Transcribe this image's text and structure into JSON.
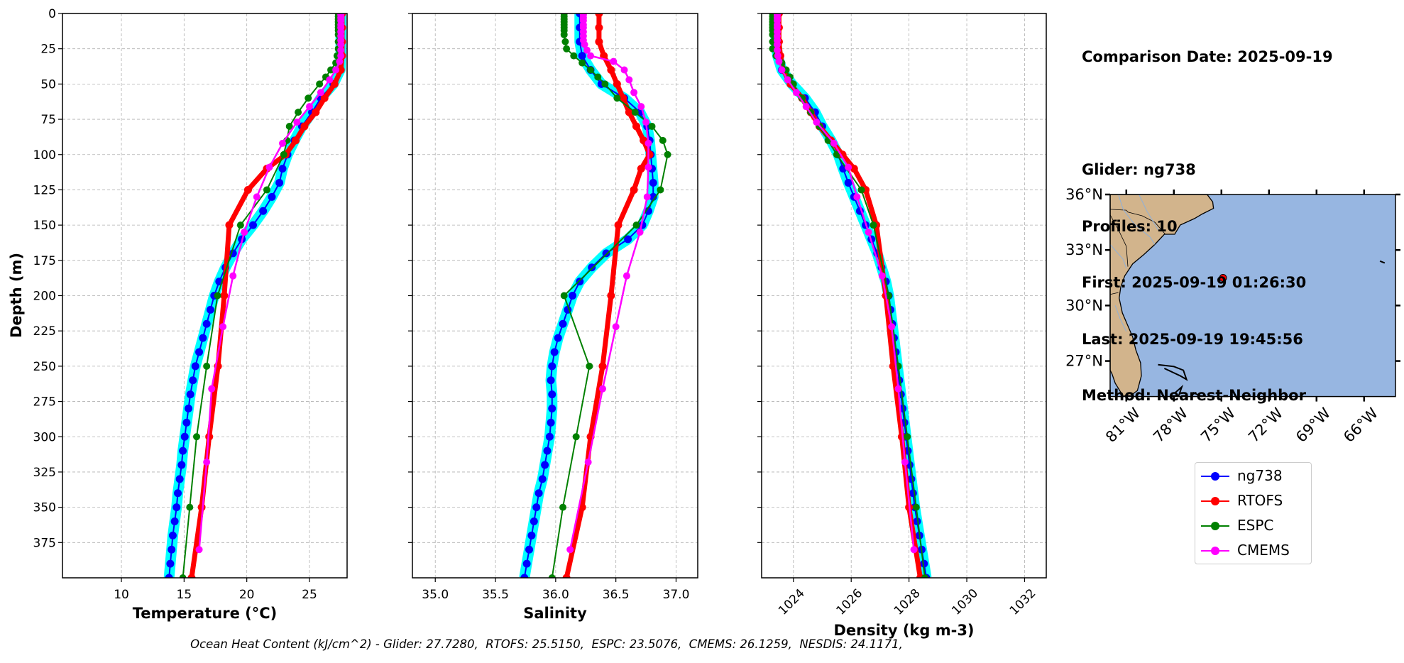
{
  "info": {
    "comparison_date": "Comparison Date: 2025-09-19",
    "glider": "Glider: ng738",
    "profiles": "Profiles: 10",
    "first": "First: 2025-09-19 01:26:30",
    "last": "Last: 2025-09-19 19:45:56",
    "method": "Method: Nearest-Neighbor"
  },
  "footer": "Ocean Heat Content (kJ/cm^2) - Glider: 27.7280,  RTOFS: 25.5150,  ESPC: 23.5076,  CMEMS: 26.1259,  NESDIS: 24.1171,",
  "colors": {
    "glider": "#0000ff",
    "glider_range": "#00ffff",
    "rtofs": "#ff0000",
    "espc": "#008000",
    "cmems": "#ff00ff",
    "land": "#d2b48c",
    "ocean": "#97b6e1",
    "grid": "#b0b0b0"
  },
  "legend": [
    "ng738",
    "RTOFS",
    "ESPC",
    "CMEMS"
  ],
  "chart_data": [
    {
      "type": "line",
      "xlabel": "Temperature (°C)",
      "ylabel": "Depth (m)",
      "xlim": [
        5.3,
        28.0
      ],
      "ylim": [
        400,
        0
      ],
      "grid": true,
      "xticks": [
        10,
        15,
        20,
        25
      ],
      "xtick_labels": [
        "10",
        "15",
        "20",
        "25"
      ],
      "yticks": [
        0,
        25,
        50,
        75,
        100,
        125,
        150,
        175,
        200,
        225,
        250,
        275,
        300,
        325,
        350,
        375
      ],
      "ytick_labels": [
        "0",
        "25",
        "50",
        "75",
        "100",
        "125",
        "150",
        "175",
        "200",
        "225",
        "250",
        "275",
        "300",
        "325",
        "350",
        "375"
      ],
      "series": [
        {
          "name": "ng738",
          "depth": [
            0,
            10,
            20,
            30,
            40,
            50,
            60,
            70,
            80,
            90,
            100,
            110,
            120,
            130,
            140,
            150,
            160,
            170,
            180,
            190,
            200,
            210,
            220,
            230,
            240,
            250,
            260,
            270,
            280,
            290,
            300,
            310,
            320,
            330,
            340,
            350,
            360,
            370,
            380,
            390,
            400
          ],
          "values": [
            27.5,
            27.5,
            27.5,
            27.5,
            27.45,
            26.9,
            25.9,
            25.2,
            24.4,
            23.8,
            23.25,
            22.85,
            22.6,
            22.0,
            21.3,
            20.5,
            19.6,
            18.9,
            18.3,
            17.8,
            17.4,
            17.1,
            16.8,
            16.5,
            16.2,
            15.9,
            15.7,
            15.5,
            15.35,
            15.2,
            15.05,
            14.9,
            14.8,
            14.65,
            14.5,
            14.4,
            14.25,
            14.1,
            14.0,
            13.9,
            13.8
          ]
        },
        {
          "name": "RTOFS",
          "depth": [
            0,
            10,
            20,
            30,
            40,
            50,
            60,
            70,
            80,
            90,
            100,
            110,
            125,
            150,
            200,
            250,
            300,
            350,
            400
          ],
          "values": [
            27.6,
            27.6,
            27.6,
            27.6,
            27.5,
            27.0,
            26.2,
            25.5,
            24.6,
            23.9,
            23.1,
            21.6,
            20.1,
            18.6,
            18.2,
            17.7,
            17.0,
            16.4,
            15.6
          ]
        },
        {
          "name": "ESPC",
          "depth": [
            0,
            2,
            4,
            6,
            8,
            10,
            12,
            15,
            20,
            25,
            30,
            35,
            40,
            45,
            50,
            60,
            70,
            80,
            90,
            100,
            125,
            150,
            200,
            250,
            300,
            350,
            400
          ],
          "values": [
            27.3,
            27.3,
            27.3,
            27.3,
            27.3,
            27.3,
            27.3,
            27.3,
            27.3,
            27.3,
            27.2,
            27.1,
            26.7,
            26.3,
            25.8,
            24.9,
            24.1,
            23.4,
            23.2,
            22.95,
            21.6,
            19.5,
            17.67,
            16.8,
            16.0,
            15.45,
            14.9
          ]
        },
        {
          "name": "CMEMS",
          "depth": [
            0,
            1,
            3,
            5,
            8,
            10,
            13,
            16,
            19,
            22,
            26,
            30,
            34,
            40,
            47,
            56,
            66,
            77,
            92,
            109,
            130,
            155,
            186,
            222,
            266,
            318,
            380
          ],
          "values": [
            27.5,
            27.5,
            27.5,
            27.5,
            27.5,
            27.5,
            27.5,
            27.5,
            27.5,
            27.5,
            27.5,
            27.5,
            27.4,
            27.1,
            26.6,
            25.9,
            25.0,
            24.0,
            22.85,
            21.8,
            20.8,
            19.8,
            18.9,
            18.1,
            17.2,
            16.8,
            16.2
          ]
        }
      ]
    },
    {
      "type": "line",
      "xlabel": "Salinity",
      "xlim": [
        34.81,
        37.18
      ],
      "ylim": [
        400,
        0
      ],
      "grid": true,
      "xticks": [
        35.0,
        35.5,
        36.0,
        36.5,
        37.0
      ],
      "xtick_labels": [
        "35.0",
        "35.5",
        "36.0",
        "36.5",
        "37.0"
      ],
      "yticks": [
        0,
        25,
        50,
        75,
        100,
        125,
        150,
        175,
        200,
        225,
        250,
        275,
        300,
        325,
        350,
        375
      ],
      "series": [
        {
          "name": "ng738",
          "depth": [
            0,
            10,
            20,
            30,
            40,
            50,
            60,
            70,
            80,
            90,
            100,
            110,
            120,
            130,
            140,
            150,
            160,
            170,
            180,
            190,
            200,
            210,
            220,
            230,
            240,
            250,
            260,
            270,
            280,
            290,
            300,
            310,
            320,
            330,
            340,
            350,
            360,
            370,
            380,
            390,
            400
          ],
          "values": [
            36.2,
            36.2,
            36.2,
            36.22,
            36.29,
            36.38,
            36.57,
            36.7,
            36.76,
            36.78,
            36.79,
            36.8,
            36.81,
            36.81,
            36.77,
            36.72,
            36.6,
            36.42,
            36.3,
            36.2,
            36.14,
            36.1,
            36.06,
            36.02,
            35.99,
            35.97,
            35.96,
            35.97,
            35.97,
            35.96,
            35.95,
            35.93,
            35.91,
            35.89,
            35.86,
            35.84,
            35.82,
            35.8,
            35.78,
            35.76,
            35.74
          ]
        },
        {
          "name": "RTOFS",
          "depth": [
            0,
            10,
            20,
            30,
            40,
            50,
            60,
            70,
            80,
            90,
            100,
            110,
            125,
            150,
            200,
            250,
            300,
            350,
            400
          ],
          "values": [
            36.36,
            36.36,
            36.36,
            36.4,
            36.46,
            36.51,
            36.56,
            36.61,
            36.67,
            36.73,
            36.78,
            36.71,
            36.65,
            36.52,
            36.46,
            36.39,
            36.29,
            36.22,
            36.09
          ]
        },
        {
          "name": "ESPC",
          "depth": [
            0,
            2,
            4,
            6,
            8,
            10,
            12,
            15,
            20,
            25,
            30,
            35,
            40,
            45,
            50,
            60,
            70,
            80,
            90,
            100,
            125,
            150,
            200,
            250,
            300,
            350,
            400
          ],
          "values": [
            36.07,
            36.07,
            36.07,
            36.07,
            36.07,
            36.07,
            36.07,
            36.07,
            36.08,
            36.09,
            36.15,
            36.22,
            36.29,
            36.35,
            36.41,
            36.51,
            36.66,
            36.8,
            36.89,
            36.93,
            36.87,
            36.67,
            36.07,
            36.28,
            36.17,
            36.06,
            35.97
          ]
        },
        {
          "name": "CMEMS",
          "depth": [
            0,
            1,
            3,
            5,
            8,
            10,
            13,
            16,
            19,
            22,
            26,
            30,
            34,
            40,
            47,
            56,
            66,
            77,
            92,
            109,
            130,
            155,
            186,
            222,
            266,
            318,
            380
          ],
          "values": [
            36.23,
            36.23,
            36.23,
            36.23,
            36.23,
            36.23,
            36.23,
            36.23,
            36.23,
            36.24,
            36.26,
            36.29,
            36.48,
            36.57,
            36.61,
            36.65,
            36.71,
            36.75,
            36.77,
            36.77,
            36.76,
            36.7,
            36.59,
            36.5,
            36.39,
            36.27,
            36.12
          ]
        }
      ]
    },
    {
      "type": "line",
      "xlabel": "Density (kg m-3)",
      "xlim": [
        1022.9,
        1032.75
      ],
      "ylim": [
        400,
        0
      ],
      "grid": true,
      "xticks": [
        1024,
        1026,
        1028,
        1030,
        1032
      ],
      "xtick_labels": [
        "1024",
        "1026",
        "1028",
        "1030",
        "1032"
      ],
      "yticks": [
        0,
        25,
        50,
        75,
        100,
        125,
        150,
        175,
        200,
        225,
        250,
        275,
        300,
        325,
        350,
        375
      ],
      "series": [
        {
          "name": "ng738",
          "depth": [
            0,
            10,
            20,
            30,
            40,
            50,
            60,
            70,
            80,
            90,
            100,
            110,
            120,
            130,
            140,
            150,
            160,
            170,
            180,
            190,
            200,
            210,
            220,
            230,
            240,
            250,
            260,
            270,
            280,
            290,
            300,
            310,
            320,
            330,
            340,
            350,
            360,
            370,
            380,
            390,
            400
          ],
          "values": [
            1023.38,
            1023.38,
            1023.4,
            1023.45,
            1023.6,
            1023.95,
            1024.4,
            1024.75,
            1025.0,
            1025.3,
            1025.55,
            1025.72,
            1025.9,
            1026.1,
            1026.3,
            1026.5,
            1026.7,
            1026.9,
            1027.05,
            1027.2,
            1027.3,
            1027.36,
            1027.42,
            1027.48,
            1027.54,
            1027.6,
            1027.66,
            1027.72,
            1027.78,
            1027.84,
            1027.9,
            1027.96,
            1028.02,
            1028.08,
            1028.14,
            1028.2,
            1028.28,
            1028.36,
            1028.44,
            1028.52,
            1028.6
          ]
        },
        {
          "name": "RTOFS",
          "depth": [
            0,
            10,
            20,
            30,
            40,
            50,
            60,
            70,
            80,
            90,
            100,
            110,
            125,
            150,
            200,
            250,
            300,
            350,
            400
          ],
          "values": [
            1023.5,
            1023.5,
            1023.5,
            1023.55,
            1023.65,
            1023.9,
            1024.3,
            1024.6,
            1024.9,
            1025.3,
            1025.7,
            1026.1,
            1026.5,
            1026.87,
            1027.2,
            1027.45,
            1027.75,
            1028.0,
            1028.39
          ]
        },
        {
          "name": "ESPC",
          "depth": [
            0,
            2,
            4,
            6,
            8,
            10,
            12,
            15,
            20,
            25,
            30,
            35,
            40,
            45,
            50,
            60,
            70,
            80,
            90,
            100,
            125,
            150,
            200,
            250,
            300,
            350,
            400
          ],
          "values": [
            1023.28,
            1023.28,
            1023.28,
            1023.28,
            1023.28,
            1023.28,
            1023.28,
            1023.28,
            1023.28,
            1023.28,
            1023.4,
            1023.6,
            1023.75,
            1023.88,
            1024.0,
            1024.3,
            1024.6,
            1024.9,
            1025.2,
            1025.5,
            1026.35,
            1026.77,
            1027.3,
            1027.63,
            1027.94,
            1028.25,
            1028.55
          ]
        },
        {
          "name": "CMEMS",
          "depth": [
            0,
            1,
            3,
            5,
            8,
            10,
            13,
            16,
            19,
            22,
            26,
            30,
            34,
            40,
            47,
            56,
            66,
            77,
            92,
            109,
            130,
            155,
            186,
            222,
            266,
            318,
            380
          ],
          "values": [
            1023.44,
            1023.44,
            1023.44,
            1023.44,
            1023.44,
            1023.44,
            1023.44,
            1023.44,
            1023.44,
            1023.44,
            1023.44,
            1023.46,
            1023.5,
            1023.6,
            1023.8,
            1024.1,
            1024.44,
            1024.8,
            1025.4,
            1025.9,
            1026.2,
            1026.6,
            1027.07,
            1027.4,
            1027.63,
            1027.86,
            1028.17
          ]
        }
      ]
    }
  ],
  "map": {
    "lon_range": [
      -82.02,
      -64.02
    ],
    "lat_range": [
      25.08,
      36.0
    ],
    "lat_ticks": [
      36,
      33,
      30,
      27
    ],
    "lat_tick_labels": [
      "36°N",
      "33°N",
      "30°N",
      "27°N"
    ],
    "lon_ticks": [
      -81,
      -78,
      -75,
      -72,
      -69,
      -66
    ],
    "lon_tick_labels": [
      "81°W",
      "78°W",
      "75°W",
      "72°W",
      "69°W",
      "66°W"
    ],
    "glider_position": {
      "lon": -74.9,
      "lat": 31.49
    }
  }
}
